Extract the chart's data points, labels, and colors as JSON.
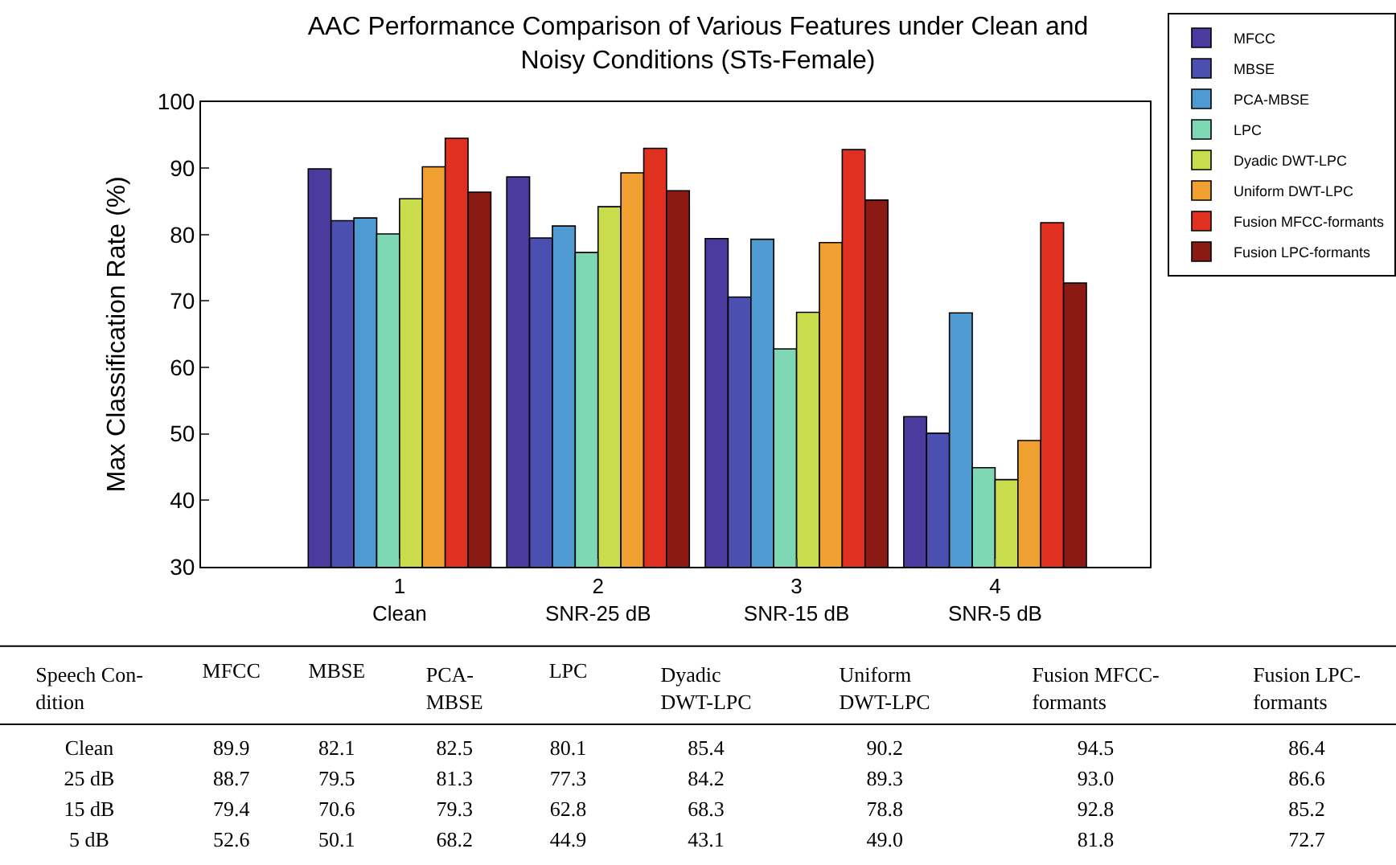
{
  "chart_data": [
    {
      "type": "bar",
      "title": "AAC Performance Comparison of Various Features under Clean and\nNoisy Conditions (STs-Female)",
      "ylabel": "Max Classification Rate (%)",
      "categories": [
        "1\nClean",
        "2\nSNR-25 dB",
        "3\nSNR-15 dB",
        "4\nSNR-5 dB"
      ],
      "series": [
        {
          "name": "MFCC",
          "color": "#4b3b9e",
          "values": [
            89.9,
            88.7,
            79.4,
            52.6
          ]
        },
        {
          "name": "MBSE",
          "color": "#4a4fb0",
          "values": [
            82.1,
            79.5,
            70.6,
            50.1
          ]
        },
        {
          "name": "PCA-MBSE",
          "color": "#4f9ad0",
          "values": [
            82.5,
            81.3,
            79.3,
            68.2
          ]
        },
        {
          "name": "LPC",
          "color": "#7fd8b4",
          "values": [
            80.1,
            77.3,
            62.8,
            44.9
          ]
        },
        {
          "name": "Dyadic DWT-LPC",
          "color": "#c8dc4c",
          "values": [
            85.4,
            84.2,
            68.3,
            43.1
          ]
        },
        {
          "name": "Uniform DWT-LPC",
          "color": "#f0a030",
          "values": [
            90.2,
            89.3,
            78.8,
            49.0
          ]
        },
        {
          "name": "Fusion MFCC-formants",
          "color": "#e03020",
          "values": [
            94.5,
            93.0,
            92.8,
            81.8
          ]
        },
        {
          "name": "Fusion LPC-formants",
          "color": "#8b1a14",
          "values": [
            86.4,
            86.6,
            85.2,
            72.7
          ]
        }
      ],
      "ylim": [
        30,
        100
      ],
      "yticks": [
        30,
        40,
        50,
        60,
        70,
        80,
        90,
        100
      ],
      "grid": false,
      "legend": "top right"
    },
    {
      "type": "other",
      "categories": [
        "Clean",
        "25 dB",
        "15 dB",
        "5 dB"
      ],
      "series": [
        {
          "name": "MFCC",
          "values": [
            89.9,
            88.7,
            79.4,
            52.6
          ]
        },
        {
          "name": "MBSE",
          "values": [
            82.1,
            79.5,
            70.6,
            50.1
          ]
        },
        {
          "name": "PCA-MBSE",
          "values": [
            82.5,
            81.3,
            79.3,
            68.2
          ]
        },
        {
          "name": "LPC",
          "values": [
            80.1,
            77.3,
            62.8,
            44.9
          ]
        },
        {
          "name": "Dyadic DWT-LPC",
          "values": [
            85.4,
            84.2,
            68.3,
            43.1
          ]
        },
        {
          "name": "Uniform DWT-LPC",
          "values": [
            90.2,
            89.3,
            78.8,
            49.0
          ],
          "value_labels": [
            "90.2",
            "89.3",
            "78.8",
            "49.0"
          ]
        },
        {
          "name": "Fusion MFCC-formants",
          "values": [
            94.5,
            93.0,
            92.8,
            81.8
          ],
          "value_labels": [
            "94.5",
            "93.0",
            "92.8",
            "81.8"
          ]
        },
        {
          "name": "Fusion LPC-formants",
          "values": [
            86.4,
            86.6,
            85.2,
            72.7
          ]
        }
      ],
      "data_labels": true,
      "annotations": [
        "Speech Con-\ndition"
      ]
    }
  ]
}
